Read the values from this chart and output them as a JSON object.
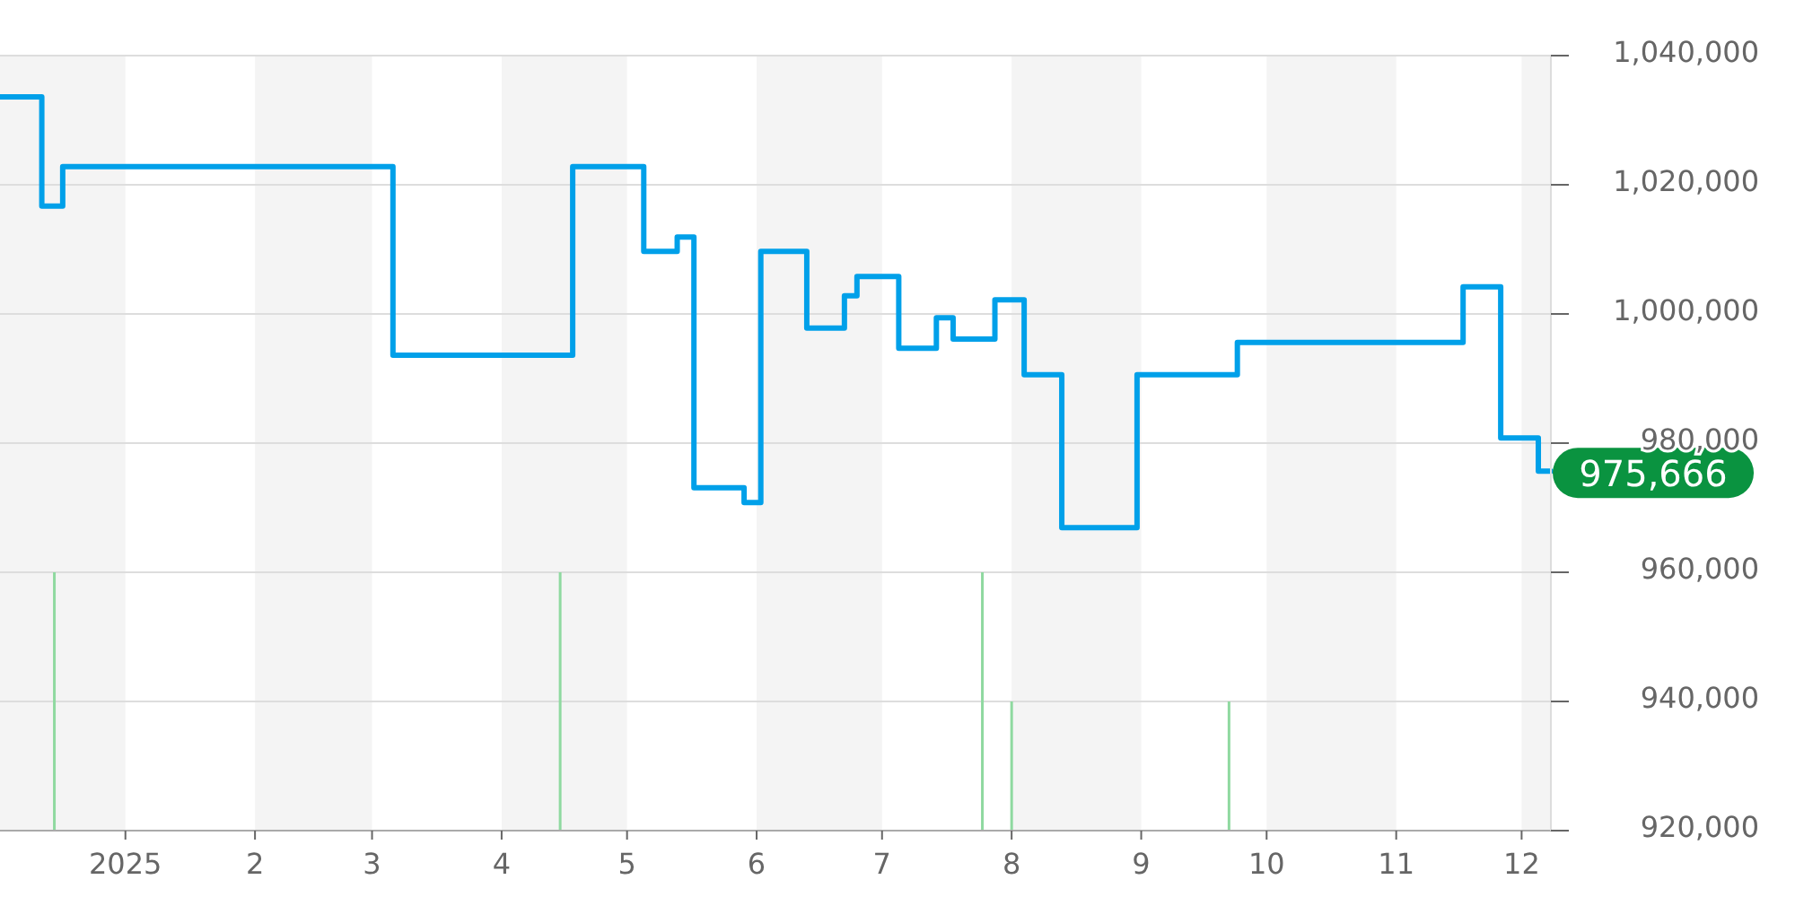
{
  "chart_data": {
    "type": "step",
    "xlim": [
      "2024-12-02",
      "2025-12-08"
    ],
    "ylim": [
      920000,
      1040000
    ],
    "yticks": [
      {
        "value": 920000,
        "label": "920,000"
      },
      {
        "value": 940000,
        "label": "940,000"
      },
      {
        "value": 960000,
        "label": "960,000"
      },
      {
        "value": 980000,
        "label": "980,000"
      },
      {
        "value": 1000000,
        "label": "1,000,000"
      },
      {
        "value": 1020000,
        "label": "1,020,000"
      },
      {
        "value": 1040000,
        "label": "1,040,000"
      }
    ],
    "xticks": [
      {
        "value": "2025-01-01",
        "label": "2025"
      },
      {
        "value": "2025-02-01",
        "label": "2"
      },
      {
        "value": "2025-03-01",
        "label": "3"
      },
      {
        "value": "2025-04-01",
        "label": "4"
      },
      {
        "value": "2025-05-01",
        "label": "5"
      },
      {
        "value": "2025-06-01",
        "label": "6"
      },
      {
        "value": "2025-07-01",
        "label": "7"
      },
      {
        "value": "2025-08-01",
        "label": "8"
      },
      {
        "value": "2025-09-01",
        "label": "9"
      },
      {
        "value": "2025-10-01",
        "label": "10"
      },
      {
        "value": "2025-11-01",
        "label": "11"
      },
      {
        "value": "2025-12-01",
        "label": "12"
      }
    ],
    "grid": "y",
    "line_style": "solid",
    "marker": "none",
    "series": [
      {
        "color": "#00a0e9",
        "x": [
          "2024-12-02",
          "2024-12-12",
          "2024-12-17",
          "2025-03-06",
          "2025-04-18",
          "2025-05-05",
          "2025-05-13",
          "2025-05-17",
          "2025-05-29",
          "2025-06-02",
          "2025-06-13",
          "2025-06-22",
          "2025-06-25",
          "2025-07-05",
          "2025-07-14",
          "2025-07-18",
          "2025-07-28",
          "2025-08-04",
          "2025-08-13",
          "2025-08-31",
          "2025-09-24",
          "2025-11-17",
          "2025-11-26",
          "2025-12-05",
          "2025-12-08"
        ],
        "values": [
          1033600,
          1016700,
          1022800,
          993600,
          1022800,
          1009700,
          1011900,
          973100,
          970800,
          1009700,
          997800,
          1002800,
          1005800,
          994700,
          999400,
          996100,
          1002200,
          990600,
          966900,
          990600,
          995600,
          1004200,
          980800,
          975666,
          975666
        ]
      },
      {
        "type": "bar",
        "color": "#8fd9a0",
        "x": [
          "2024-12-15",
          "2025-04-15",
          "2025-07-25",
          "2025-08-01",
          "2025-09-22"
        ],
        "values": [
          960000,
          960000,
          960000,
          940000,
          940000
        ]
      }
    ],
    "bands": [
      {
        "axis": "x",
        "from": "2024-12-02",
        "to": "2025-01-01",
        "color": "#f4f4f4"
      },
      {
        "axis": "x",
        "from": "2025-02-01",
        "to": "2025-03-01",
        "color": "#f4f4f4"
      },
      {
        "axis": "x",
        "from": "2025-04-01",
        "to": "2025-05-01",
        "color": "#f4f4f4"
      },
      {
        "axis": "x",
        "from": "2025-06-01",
        "to": "2025-07-01",
        "color": "#f4f4f4"
      },
      {
        "axis": "x",
        "from": "2025-08-01",
        "to": "2025-09-01",
        "color": "#f4f4f4"
      },
      {
        "axis": "x",
        "from": "2025-10-01",
        "to": "2025-11-01",
        "color": "#f4f4f4"
      },
      {
        "axis": "x",
        "from": "2025-12-01",
        "to": "2025-12-08",
        "color": "#f4f4f4"
      }
    ],
    "annotations": [
      {
        "text": "975,666",
        "x": "2025-12-05",
        "y": 975666
      }
    ]
  }
}
